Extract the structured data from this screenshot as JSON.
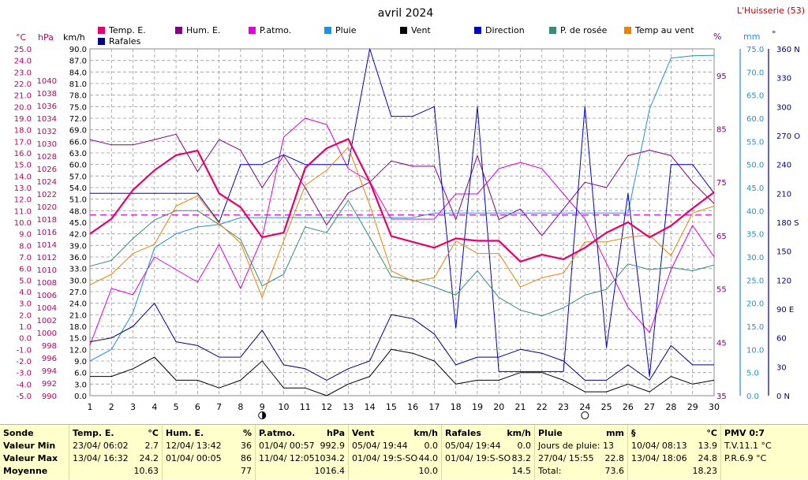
{
  "title": "avril 2024",
  "station": "L'Huisserie (53)",
  "legend": [
    {
      "label": "Temp. E.",
      "color": "#e8006a"
    },
    {
      "label": "Hum. E.",
      "color": "#800080"
    },
    {
      "label": "P.atmo.",
      "color": "#e000e0"
    },
    {
      "label": "Pluie",
      "color": "#2090e0"
    },
    {
      "label": "Vent",
      "color": "#000000"
    },
    {
      "label": "Direction",
      "color": "#0000cc"
    },
    {
      "label": "P. de rosée",
      "color": "#3a8a7a"
    },
    {
      "label": "Temp au vent",
      "color": "#f08000"
    },
    {
      "label": "Rafales",
      "color": "#000080"
    }
  ],
  "axes": {
    "temp_unit": "°C",
    "hpa_unit": "hPa",
    "kmh_unit": "km/h",
    "hum_unit": "%",
    "mm_unit": "mm",
    "deg_unit": "°",
    "temp_ticks": [
      "25.0",
      "24.0",
      "23.0",
      "22.0",
      "21.0",
      "20.0",
      "19.0",
      "18.0",
      "17.0",
      "16.0",
      "15.0",
      "14.0",
      "13.0",
      "12.0",
      "11.0",
      "10.0",
      "9.0",
      "8.0",
      "7.0",
      "6.0",
      "5.0",
      "4.0",
      "3.0",
      "2.0",
      "1.0",
      "0.0",
      "-1.0",
      "-2.0",
      "-3.0",
      "-4.0",
      "-5.0"
    ],
    "hpa_ticks": [
      "1040",
      "1038",
      "1036",
      "1034",
      "1032",
      "1030",
      "1028",
      "1026",
      "1024",
      "1022",
      "1020",
      "1018",
      "1016",
      "1014",
      "1012",
      "1010",
      "1008",
      "1006",
      "1004",
      "1002",
      "1000",
      "998",
      "996",
      "994",
      "992",
      "990"
    ],
    "kmh_ticks": [
      "90.0",
      "87.0",
      "84.0",
      "81.0",
      "78.0",
      "75.0",
      "72.0",
      "69.0",
      "66.0",
      "63.0",
      "60.0",
      "57.0",
      "54.0",
      "51.0",
      "48.0",
      "45.0",
      "42.0",
      "39.0",
      "36.0",
      "33.0",
      "30.0",
      "27.0",
      "24.0",
      "21.0",
      "18.0",
      "15.0",
      "12.0",
      "9.0",
      "6.0",
      "3.0",
      "0.0"
    ],
    "hum_ticks": [
      "95",
      "85",
      "75",
      "65",
      "55",
      "45",
      "35"
    ],
    "mm_ticks": [
      "75.0",
      "70.0",
      "65.0",
      "60.0",
      "55.0",
      "50.0",
      "45.0",
      "40.0",
      "35.0",
      "30.0",
      "25.0",
      "20.0",
      "15.0",
      "10.0",
      "5.0",
      "0.0"
    ],
    "deg_ticks": [
      "360 N",
      "330",
      "300",
      "270 O",
      "240",
      "210",
      "180 S",
      "150",
      "120",
      "90 E",
      "60",
      "30",
      "0 N"
    ],
    "x_ticks": [
      "1",
      "2",
      "3",
      "4",
      "5",
      "6",
      "7",
      "8",
      "9",
      "10",
      "11",
      "12",
      "13",
      "14",
      "15",
      "16",
      "17",
      "18",
      "19",
      "20",
      "21",
      "22",
      "23",
      "24",
      "25",
      "26",
      "27",
      "28",
      "29",
      "30"
    ]
  },
  "chart_data": {
    "type": "line",
    "title": "avril 2024",
    "x": [
      1,
      2,
      3,
      4,
      5,
      6,
      7,
      8,
      9,
      10,
      11,
      12,
      13,
      14,
      15,
      16,
      17,
      18,
      19,
      20,
      21,
      22,
      23,
      24,
      25,
      26,
      27,
      28,
      29,
      30
    ],
    "temp_mean": 10.63,
    "series": [
      {
        "name": "Temp. E.",
        "axis": "°C",
        "values": [
          9.0,
          10.3,
          12.8,
          14.5,
          15.8,
          16.2,
          12.5,
          11.3,
          8.7,
          9.1,
          14.7,
          16.4,
          17.2,
          13.5,
          8.8,
          8.3,
          7.8,
          8.6,
          8.4,
          8.4,
          6.6,
          7.2,
          6.8,
          7.8,
          9.1,
          10.0,
          8.7,
          9.7,
          11.2,
          12.6
        ]
      },
      {
        "name": "Hum. E.",
        "axis": "%",
        "values": [
          83,
          82,
          82,
          83,
          84,
          77,
          83,
          81,
          74,
          80,
          74,
          67,
          73,
          75,
          79,
          78,
          78,
          68,
          80,
          68,
          70,
          65,
          70,
          75,
          74,
          80,
          81,
          80,
          75,
          71
        ]
      },
      {
        "name": "P.atmo.",
        "axis": "hPa",
        "values": [
          998,
          1007,
          1006,
          1012,
          1010,
          1008,
          1014,
          1007,
          1015,
          1031,
          1034,
          1033,
          1026,
          1024,
          1018,
          1018,
          1018,
          1022,
          1022,
          1026,
          1027,
          1026,
          1022,
          1018,
          1011,
          1004,
          1000,
          1010,
          1017,
          1012
        ]
      },
      {
        "name": "Pluie",
        "axis": "mm",
        "values": [
          7.5,
          10.0,
          18.0,
          32.0,
          35.0,
          36.5,
          37.0,
          38.5,
          38.5,
          38.5,
          38.5,
          38.5,
          38.5,
          38.5,
          38.5,
          38.5,
          39.5,
          39.5,
          39.5,
          39.5,
          39.5,
          39.5,
          39.5,
          39.5,
          39.5,
          39.5,
          62.0,
          73.0,
          73.5,
          73.6
        ]
      },
      {
        "name": "Vent",
        "axis": "km/h",
        "values": [
          5.0,
          5.0,
          7.0,
          10.0,
          4.0,
          4.0,
          2.0,
          4.0,
          9.0,
          2.0,
          2.0,
          0.0,
          3.0,
          5.0,
          12.0,
          11.0,
          9.0,
          3.0,
          4.0,
          4.0,
          6.0,
          6.0,
          4.0,
          1.0,
          1.0,
          3.0,
          1.0,
          5.0,
          3.0,
          4.0
        ]
      },
      {
        "name": "Rafales",
        "axis": "km/h",
        "values": [
          14.0,
          15.0,
          18.0,
          24.0,
          14.0,
          13.0,
          10.0,
          10.0,
          17.0,
          8.0,
          7.0,
          4.0,
          7.0,
          9.0,
          21.0,
          20.0,
          16.0,
          8.0,
          10.0,
          10.0,
          12.0,
          11.0,
          9.0,
          4.0,
          4.0,
          8.0,
          4.0,
          13.0,
          8.0,
          8.0
        ]
      },
      {
        "name": "Direction",
        "axis": "°",
        "values": [
          210,
          210,
          210,
          210,
          210,
          210,
          180,
          240,
          240,
          250,
          240,
          240,
          240,
          360,
          290,
          290,
          300,
          70,
          300,
          25,
          25,
          25,
          25,
          300,
          50,
          210,
          20,
          240,
          240,
          210
        ]
      },
      {
        "name": "P. de rosée",
        "axis": "°C",
        "values": [
          6.2,
          6.7,
          8.6,
          10.2,
          11.0,
          11.0,
          9.8,
          8.5,
          4.5,
          5.5,
          9.6,
          9.1,
          11.9,
          8.7,
          5.3,
          5.0,
          4.4,
          3.7,
          5.8,
          3.5,
          2.4,
          1.9,
          2.6,
          3.7,
          4.2,
          6.4,
          5.9,
          6.1,
          5.8,
          6.3
        ]
      },
      {
        "name": "Temp au vent",
        "axis": "°C",
        "values": [
          4.6,
          5.5,
          7.3,
          8.1,
          11.4,
          12.3,
          9.9,
          8.2,
          3.5,
          8.4,
          13.2,
          14.5,
          16.5,
          11.5,
          5.8,
          4.9,
          5.2,
          8.4,
          7.3,
          7.3,
          4.4,
          5.2,
          5.6,
          8.3,
          8.3,
          8.7,
          8.9,
          7.1,
          10.8,
          11.4
        ]
      }
    ]
  },
  "moon_markers": [
    {
      "day": "9",
      "phase": "new"
    },
    {
      "day": "24",
      "phase": "full"
    }
  ],
  "stats": {
    "headers": {
      "rowlabel": "Sonde",
      "temp": "Temp. E.",
      "temp_unit": "°C",
      "hum": "Hum. E.",
      "hum_unit": "%",
      "patmo": "P.atmo.",
      "patmo_unit": "hPa",
      "vent": "Vent",
      "vent_unit": "km/h",
      "raf": "Rafales",
      "raf_unit": "km/h",
      "pluie": "Pluie",
      "pluie_unit": "mm",
      "sect": "§",
      "sect_unit": "°C",
      "pmv": "PMV 0:7"
    },
    "row_labels": [
      "Valeur Min",
      "Valeur Max",
      "Moyenne"
    ],
    "temp": {
      "min_date": "23/04/",
      "min_time": "06:02",
      "min_val": "2.7",
      "max_date": "13/04/",
      "max_time": "16:32",
      "max_val": "24.2",
      "mean": "10.63"
    },
    "hum": {
      "min_date": "12/04/",
      "min_time": "13:42",
      "min_val": "36",
      "max_date": "01/04/",
      "max_time": "00:05",
      "max_val": "86",
      "mean": "77"
    },
    "patmo": {
      "min_date": "01/04/",
      "min_time": "00:57",
      "min_val": "992.9",
      "max_date": "11/04/",
      "max_time": "12:05",
      "max_val": "1034.2",
      "mean": "1016.4"
    },
    "vent": {
      "min_date": "05/04/",
      "min_time": "19:44",
      "min_val": "0.0",
      "max_date": "01/04/",
      "max_time": "19:S-SO",
      "max_val": "44.0",
      "mean": "10.0"
    },
    "raf": {
      "min_date": "05/04/",
      "min_time": "19:44",
      "min_val": "0.0",
      "max_date": "01/04/",
      "max_time": "19:S-SO",
      "max_val": "83.2",
      "mean": "14.5"
    },
    "pluie": {
      "line1": "Jours de pluie: 13",
      "line2_date": "27/04/",
      "line2_time": "15:55",
      "line2_val": "22.8",
      "line3_label": "Total:",
      "line3_val": "73.6"
    },
    "sect": {
      "min_date": "10/04/",
      "min_time": "08:13",
      "min_val": "13.9",
      "max_date": "13/04/",
      "max_time": "18:06",
      "max_val": "24.8",
      "mean": "18.23"
    },
    "pmv": {
      "line1": "T.V.11.1 °C",
      "line2": "P.R.6.9 °C"
    }
  }
}
